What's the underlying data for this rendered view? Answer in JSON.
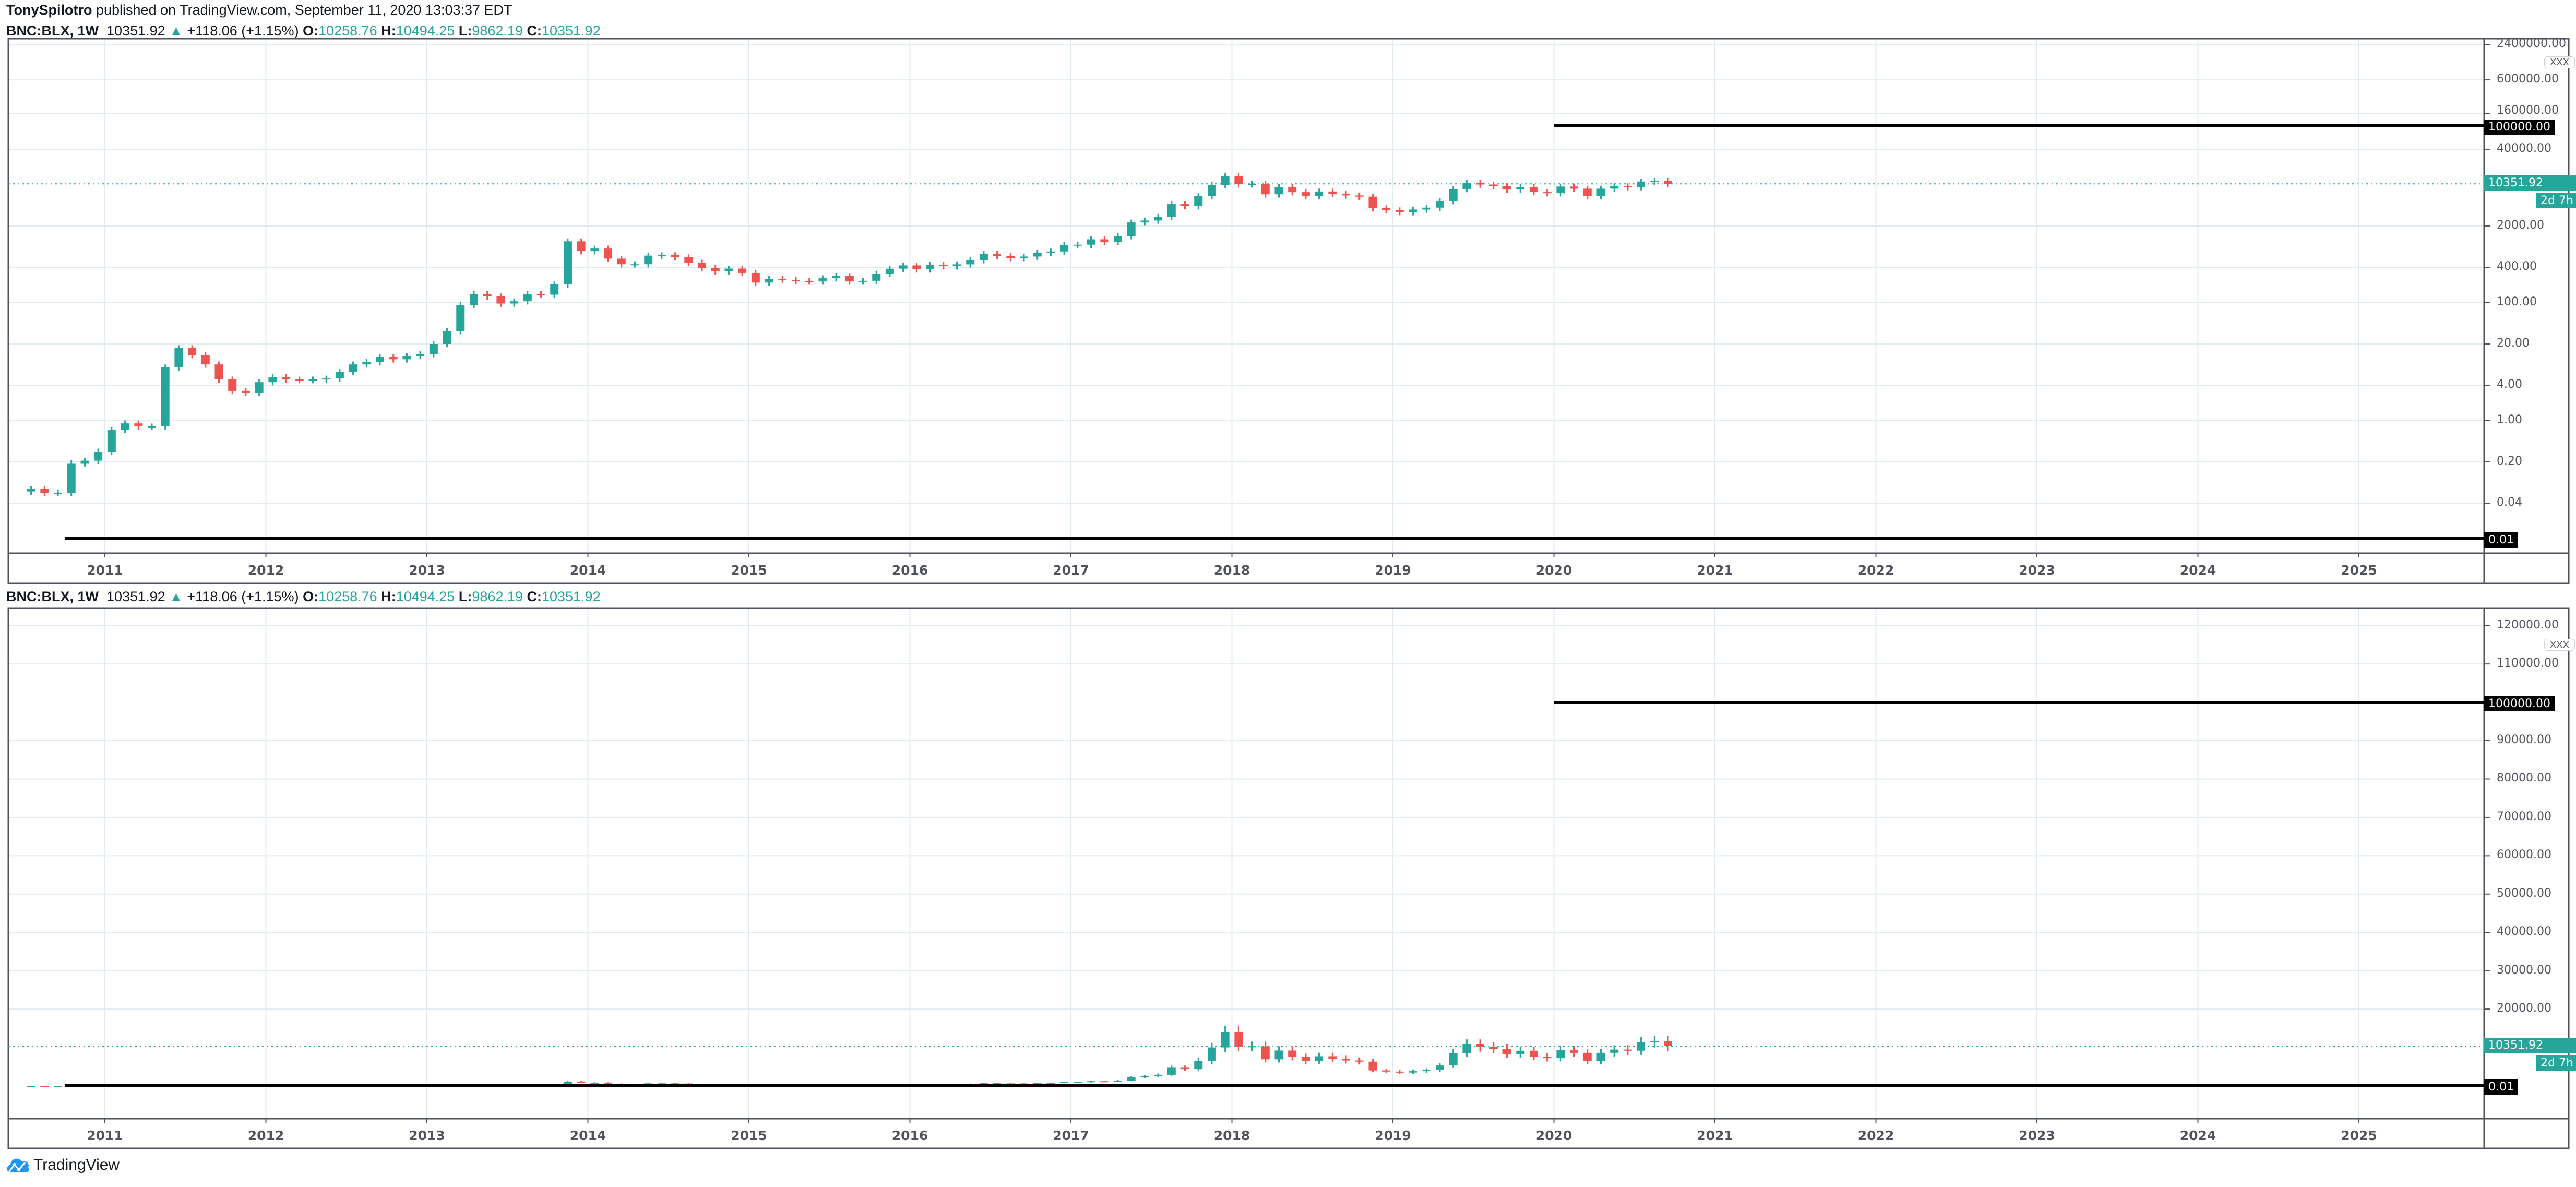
{
  "header": {
    "author": "TonySpilotro",
    "published": "published on TradingView.com, September 11, 2020 13:03:37 EDT"
  },
  "legend": {
    "symbol": "BNC:BLX, 1W",
    "last": "10351.92",
    "change": "+118.06 (+1.15%)",
    "o_label": "O:",
    "o": "10258.76",
    "h_label": "H:",
    "h": "10494.25",
    "l_label": "L:",
    "l": "9862.19",
    "c_label": "C:",
    "c": "10351.92"
  },
  "colors": {
    "up": "#26a69a",
    "down": "#ef5350",
    "grid": "#e1ecf2",
    "axis": "#50535e",
    "hline": "#000000",
    "logo": "#2196f3"
  },
  "logo": {
    "text": "TradingView",
    "icon": "tradingview-cloud-icon"
  },
  "scale_button": "XXX",
  "countdown": "2d 7h",
  "chart_data": [
    {
      "type": "candlestick",
      "scale": "log",
      "title": "",
      "x_ticks": [
        "2011",
        "2012",
        "2013",
        "2014",
        "2015",
        "2016",
        "2017",
        "2018",
        "2019",
        "2020",
        "2021",
        "2022",
        "2023",
        "2024",
        "2025"
      ],
      "y_ticks": [
        "2400000.00",
        "600000.00",
        "160000.00",
        "40000.00",
        "2000.00",
        "400.00",
        "100.00",
        "20.00",
        "4.00",
        "1.00",
        "0.20",
        "0.04"
      ],
      "y_tick_values": [
        2400000,
        600000,
        160000,
        40000,
        2000,
        400,
        100,
        20,
        4,
        1,
        0.2,
        0.04
      ],
      "ylim": [
        0.005,
        3000000
      ],
      "xlim": [
        "2010-06",
        "2025-12"
      ],
      "grid": true,
      "last_price_label": "10351.92",
      "horizontal_lines": [
        {
          "value": 100000,
          "label": "100000.00",
          "from": "2020-01"
        },
        {
          "value": 0.01,
          "label": "0.01",
          "from": "2010-10"
        }
      ]
    },
    {
      "type": "candlestick",
      "scale": "linear",
      "title": "",
      "x_ticks": [
        "2011",
        "2012",
        "2013",
        "2014",
        "2015",
        "2016",
        "2017",
        "2018",
        "2019",
        "2020",
        "2021",
        "2022",
        "2023",
        "2024",
        "2025"
      ],
      "y_ticks": [
        "120000.00",
        "110000.00",
        "90000.00",
        "80000.00",
        "70000.00",
        "60000.00",
        "50000.00",
        "40000.00",
        "30000.00",
        "20000.00"
      ],
      "y_tick_values": [
        120000,
        110000,
        90000,
        80000,
        70000,
        60000,
        50000,
        40000,
        30000,
        20000
      ],
      "ylim": [
        -3000,
        122000
      ],
      "xlim": [
        "2010-06",
        "2025-12"
      ],
      "grid": true,
      "last_price_label": "10351.92",
      "horizontal_lines": [
        {
          "value": 100000,
          "label": "100000.00",
          "from": "2020-01"
        },
        {
          "value": 0.01,
          "label": "0.01",
          "from": "2010-10"
        }
      ]
    }
  ],
  "series": {
    "start": "2010-07",
    "interval": "1M (approx. closes)",
    "closes": [
      0.07,
      0.06,
      0.06,
      0.19,
      0.21,
      0.3,
      0.7,
      0.9,
      0.8,
      0.8,
      8,
      17,
      13,
      9,
      5,
      3.2,
      3,
      4.5,
      5.5,
      5,
      4.9,
      5,
      5.2,
      6.7,
      9,
      10,
      12,
      11,
      12.5,
      13.5,
      20,
      33,
      92,
      140,
      128,
      97,
      106,
      140,
      137,
      205,
      1100,
      750,
      830,
      560,
      450,
      450,
      630,
      640,
      590,
      480,
      390,
      340,
      380,
      320,
      220,
      255,
      245,
      235,
      230,
      260,
      285,
      230,
      236,
      312,
      378,
      430,
      368,
      437,
      416,
      448,
      530,
      670,
      620,
      575,
      608,
      700,
      740,
      960,
      965,
      1190,
      1080,
      1350,
      2300,
      2480,
      2870,
      4700,
      4340,
      6450,
      10000,
      14000,
      10200,
      10300,
      6900,
      9200,
      7500,
      6400,
      7700,
      7000,
      6600,
      6300,
      4000,
      3700,
      3450,
      3800,
      4100,
      5300,
      8500,
      10800,
      10100,
      9600,
      8300,
      9150,
      7550,
      7200,
      9350,
      8600,
      6400,
      8600,
      9450,
      9150,
      11350,
      11650,
      10352
    ],
    "last": 10351.92
  }
}
